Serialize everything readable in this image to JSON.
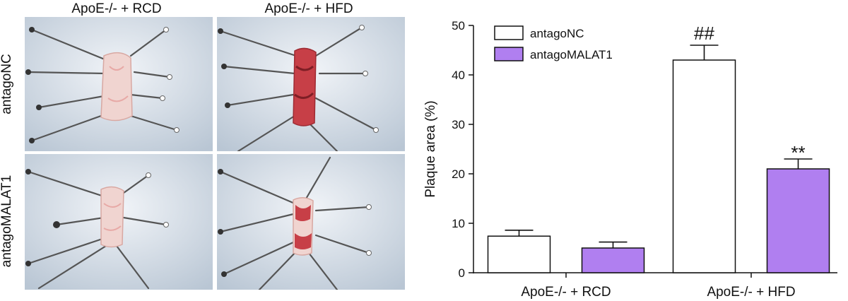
{
  "photo_panel": {
    "column_titles": [
      "ApoE-/- + RCD",
      "ApoE-/- + HFD"
    ],
    "row_labels": [
      "antagoNC",
      "antagoMALAT1"
    ]
  },
  "chart_data": {
    "type": "bar",
    "categories": [
      "ApoE-/- + RCD",
      "ApoE-/- + HFD"
    ],
    "series": [
      {
        "name": "antagoNC",
        "values": [
          7.4,
          43.0
        ],
        "errors": [
          1.2,
          3.0
        ],
        "color": "#ffffff"
      },
      {
        "name": "antagoMALAT1",
        "values": [
          5.0,
          21.0
        ],
        "errors": [
          1.2,
          2.0
        ],
        "color": "#b07ff0"
      }
    ],
    "ylabel": "Plaque area (%)",
    "ylim": [
      0,
      50
    ],
    "yticks": [
      0,
      10,
      20,
      30,
      40,
      50
    ],
    "annotations": [
      {
        "category": 1,
        "series": 0,
        "text": "##"
      },
      {
        "category": 1,
        "series": 1,
        "text": "**"
      }
    ],
    "legend_position": "top-left",
    "grid": false
  }
}
